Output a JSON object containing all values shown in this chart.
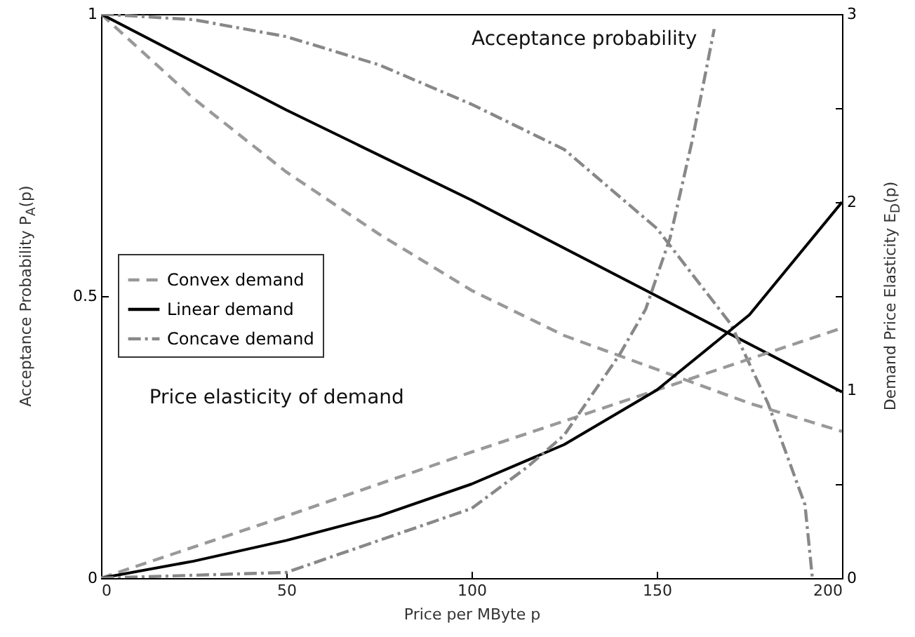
{
  "chart_data": {
    "type": "line",
    "xlabel": "Price per MByte  p",
    "ylabel": "Acceptance Probability   P$_{A}$(p)",
    "y2label": "Demand Price Elasticity   E$_{D}$(p)",
    "xlim": [
      0,
      200
    ],
    "xticks": [
      0,
      50,
      100,
      150,
      200
    ],
    "ylim": [
      0,
      1
    ],
    "yticks": [
      0,
      0.5,
      1
    ],
    "y2lim": [
      0,
      3
    ],
    "y2ticks": [
      0,
      {
        "value": 0.5,
        "label": null
      },
      1,
      {
        "value": 1.5,
        "label": null
      },
      2,
      {
        "value": 2.5,
        "label": null
      },
      3
    ],
    "grid": false,
    "legend": "left",
    "marker": "none",
    "annotations": [
      "Acceptance probability",
      "Price elasticity of demand"
    ],
    "series": [
      {
        "name": "Convex demand",
        "color": "#999999",
        "line_style": "dashed",
        "x": [
          0,
          25,
          50,
          75,
          100,
          125,
          150,
          175,
          200
        ],
        "values": [
          1,
          0.85,
          0.72,
          0.61,
          0.51,
          0.43,
          0.37,
          0.31,
          0.26
        ]
      },
      {
        "name": "Linear demand",
        "color": "#000000",
        "line_style": "solid",
        "x": [
          0,
          50,
          100,
          150,
          200
        ],
        "values": [
          1,
          0.83,
          0.67,
          0.5,
          0.33
        ]
      },
      {
        "name": "Concave demand",
        "color": "#888888",
        "line_style": "dotted",
        "x": [
          0,
          25,
          50,
          75,
          100,
          125,
          150,
          170,
          180,
          190,
          192
        ],
        "values": [
          1,
          0.99,
          0.96,
          0.91,
          0.84,
          0.76,
          0.62,
          0.45,
          0.31,
          0.13,
          0
        ]
      },
      {
        "color": "#999999",
        "line_style": "dashed",
        "axis": "y2",
        "x": [
          0,
          50,
          100,
          150,
          200
        ],
        "values": [
          0,
          0.33,
          0.67,
          1,
          1.33
        ]
      },
      {
        "color": "#000000",
        "line_style": "solid",
        "axis": "y2",
        "x": [
          0,
          25,
          50,
          75,
          100,
          125,
          150,
          175,
          200
        ],
        "values": [
          0,
          0.09,
          0.2,
          0.33,
          0.5,
          0.71,
          1,
          1.4,
          2
        ]
      },
      {
        "color": "#888888",
        "line_style": "dotted",
        "axis": "y2",
        "x": [
          0,
          50,
          75,
          100,
          115,
          125,
          140,
          147,
          153.6,
          159.6,
          165.5
        ],
        "values": [
          0,
          0.03,
          0.2,
          0.37,
          0.59,
          0.76,
          1.19,
          1.43,
          1.81,
          2.33,
          2.92
        ]
      }
    ]
  }
}
